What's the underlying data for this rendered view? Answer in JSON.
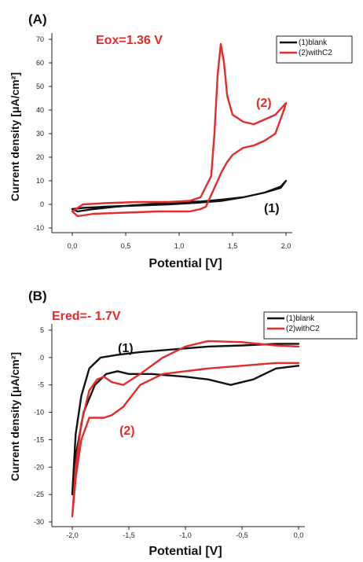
{
  "colors": {
    "blank": "#111111",
    "withC2": "#e32b2b",
    "annotation_red": "#e32b2b"
  },
  "chart_data": [
    {
      "type": "line",
      "panel_label": "(A)",
      "annotation": "Eox=1.36 V",
      "xlabel": "Potential [V]",
      "ylabel": "Current density [μA/cm²]",
      "xlim": [
        0,
        2.0
      ],
      "ylim": [
        -10,
        70
      ],
      "xticks": [
        "0,0",
        "0,5",
        "1,0",
        "1,5",
        "2,0"
      ],
      "xtick_values": [
        0,
        0.5,
        1.0,
        1.5,
        2.0
      ],
      "yticks": [
        "-10",
        "0",
        "10",
        "20",
        "30",
        "40",
        "50",
        "60",
        "70"
      ],
      "ytick_values": [
        -10,
        0,
        10,
        20,
        30,
        40,
        50,
        60,
        70
      ],
      "legend": [
        "(1)blank",
        "(2)withC2"
      ],
      "curve_labels": [
        "(1)",
        "(2)"
      ],
      "series": [
        {
          "name": "(1)blank",
          "x": [
            0,
            0.1,
            0.3,
            0.6,
            0.9,
            1.2,
            1.4,
            1.6,
            1.8,
            1.95,
            2.0,
            1.95,
            1.8,
            1.6,
            1.4,
            1.2,
            1.0,
            0.7,
            0.4,
            0.2,
            0.05,
            0
          ],
          "y": [
            -2,
            -1.5,
            -1,
            -0.5,
            0,
            0.8,
            1.5,
            3,
            5,
            7.5,
            10,
            7,
            5,
            3,
            2,
            1.2,
            1,
            0,
            -1,
            -2,
            -3,
            -2
          ]
        },
        {
          "name": "(2)withC2",
          "x": [
            0,
            0.1,
            0.3,
            0.6,
            0.9,
            1.1,
            1.2,
            1.3,
            1.33,
            1.36,
            1.39,
            1.42,
            1.45,
            1.5,
            1.6,
            1.7,
            1.8,
            1.9,
            1.96,
            2.0,
            1.98,
            1.9,
            1.8,
            1.7,
            1.6,
            1.5,
            1.45,
            1.4,
            1.35,
            1.3,
            1.25,
            1.2,
            1.1,
            1.0,
            0.8,
            0.5,
            0.2,
            0.05,
            0
          ],
          "y": [
            -3,
            0,
            0.5,
            1,
            1,
            1.5,
            3,
            12,
            30,
            55,
            68,
            60,
            46,
            38,
            35,
            34,
            36,
            38,
            41,
            43,
            40,
            30,
            27,
            25,
            24,
            21,
            18,
            14,
            9,
            4,
            -1,
            -2,
            -3,
            -3,
            -3,
            -3.5,
            -4,
            -5,
            -3
          ]
        }
      ]
    },
    {
      "type": "line",
      "panel_label": "(B)",
      "annotation": "Ered=- 1.7V",
      "xlabel": "Potential [V]",
      "ylabel": "Current density [μA/cm²]",
      "xlim": [
        -2.0,
        0.0
      ],
      "ylim": [
        -30,
        5
      ],
      "xticks": [
        "-2,0",
        "-1,5",
        "-1,0",
        "-0,5",
        "0,0"
      ],
      "xtick_values": [
        -2.0,
        -1.5,
        -1.0,
        -0.5,
        0.0
      ],
      "yticks": [
        "-30",
        "-25",
        "-20",
        "-15",
        "-10",
        "-5",
        "0",
        "5"
      ],
      "ytick_values": [
        -30,
        -25,
        -20,
        -15,
        -10,
        -5,
        0,
        5
      ],
      "legend": [
        "(1)blank",
        "(2)withC2"
      ],
      "curve_labels": [
        "(1)",
        "(2)"
      ],
      "series": [
        {
          "name": "(1)blank",
          "x": [
            0,
            -0.2,
            -0.5,
            -0.8,
            -1.1,
            -1.4,
            -1.6,
            -1.75,
            -1.85,
            -1.92,
            -1.97,
            -2.0,
            -1.97,
            -1.9,
            -1.8,
            -1.7,
            -1.6,
            -1.5,
            -1.3,
            -1.0,
            -0.8,
            -0.6,
            -0.4,
            -0.2,
            0
          ],
          "y": [
            2.5,
            2.5,
            2.2,
            2,
            1.5,
            1,
            0.5,
            0,
            -2,
            -7,
            -14,
            -25,
            -18,
            -10,
            -5,
            -3,
            -2.5,
            -3,
            -3,
            -3.5,
            -4,
            -5,
            -4,
            -2,
            -1.5
          ]
        },
        {
          "name": "(2)withC2",
          "x": [
            0,
            -0.2,
            -0.5,
            -0.8,
            -1.0,
            -1.2,
            -1.4,
            -1.55,
            -1.65,
            -1.72,
            -1.78,
            -1.85,
            -1.92,
            -1.97,
            -2.0,
            -1.97,
            -1.92,
            -1.85,
            -1.78,
            -1.72,
            -1.65,
            -1.55,
            -1.4,
            -1.2,
            -1.0,
            -0.8,
            -0.5,
            -0.2,
            0
          ],
          "y": [
            2,
            2.2,
            2.8,
            3,
            2,
            0,
            -3,
            -5,
            -4.5,
            -3.5,
            -4,
            -6,
            -12,
            -20,
            -29,
            -22,
            -15,
            -11,
            -11,
            -11,
            -10.5,
            -9,
            -5,
            -3,
            -2.5,
            -2,
            -1.5,
            -1,
            -1
          ]
        }
      ]
    }
  ]
}
